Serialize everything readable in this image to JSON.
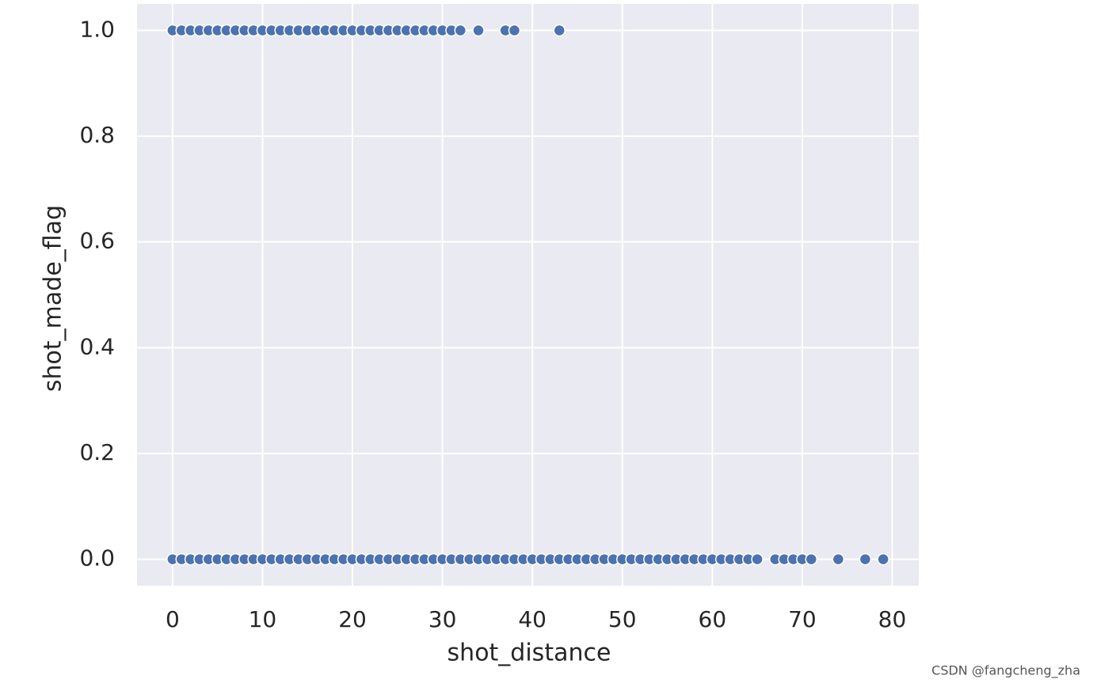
{
  "chart_data": {
    "type": "scatter",
    "xlabel": "shot_distance",
    "ylabel": "shot_made_flag",
    "x": [
      0,
      1,
      2,
      3,
      4,
      5,
      6,
      7,
      8,
      9,
      10,
      11,
      12,
      13,
      14,
      15,
      16,
      17,
      18,
      19,
      20,
      21,
      22,
      23,
      24,
      25,
      26,
      27,
      28,
      29,
      30,
      31,
      32,
      34,
      37,
      38,
      43,
      0,
      1,
      2,
      3,
      4,
      5,
      6,
      7,
      8,
      9,
      10,
      11,
      12,
      13,
      14,
      15,
      16,
      17,
      18,
      19,
      20,
      21,
      22,
      23,
      24,
      25,
      26,
      27,
      28,
      29,
      30,
      31,
      32,
      33,
      34,
      35,
      36,
      37,
      38,
      39,
      40,
      41,
      42,
      43,
      44,
      45,
      46,
      47,
      48,
      49,
      50,
      51,
      52,
      53,
      54,
      55,
      56,
      57,
      58,
      59,
      60,
      61,
      62,
      63,
      64,
      65,
      67,
      68,
      69,
      70,
      71,
      74,
      77,
      79
    ],
    "values": [
      1,
      1,
      1,
      1,
      1,
      1,
      1,
      1,
      1,
      1,
      1,
      1,
      1,
      1,
      1,
      1,
      1,
      1,
      1,
      1,
      1,
      1,
      1,
      1,
      1,
      1,
      1,
      1,
      1,
      1,
      1,
      1,
      1,
      1,
      1,
      1,
      1,
      0,
      0,
      0,
      0,
      0,
      0,
      0,
      0,
      0,
      0,
      0,
      0,
      0,
      0,
      0,
      0,
      0,
      0,
      0,
      0,
      0,
      0,
      0,
      0,
      0,
      0,
      0,
      0,
      0,
      0,
      0,
      0,
      0,
      0,
      0,
      0,
      0,
      0,
      0,
      0,
      0,
      0,
      0,
      0,
      0,
      0,
      0,
      0,
      0,
      0,
      0,
      0,
      0,
      0,
      0,
      0,
      0,
      0,
      0,
      0,
      0,
      0,
      0,
      0,
      0,
      0,
      0,
      0,
      0,
      0,
      0,
      0,
      0,
      0
    ],
    "color": "#4c72b0",
    "xlim": [
      -3.95,
      82.95
    ],
    "ylim": [
      -0.05,
      1.05
    ],
    "xticks": [
      0,
      10,
      20,
      30,
      40,
      50,
      60,
      70,
      80
    ],
    "yticks": [
      {
        "value": 0,
        "label": "0.0"
      },
      0.2,
      0.4,
      0.6,
      0.8,
      {
        "value": 1,
        "label": "1.0"
      }
    ],
    "grid": true
  },
  "watermark": "CSDN @fangcheng_zha"
}
